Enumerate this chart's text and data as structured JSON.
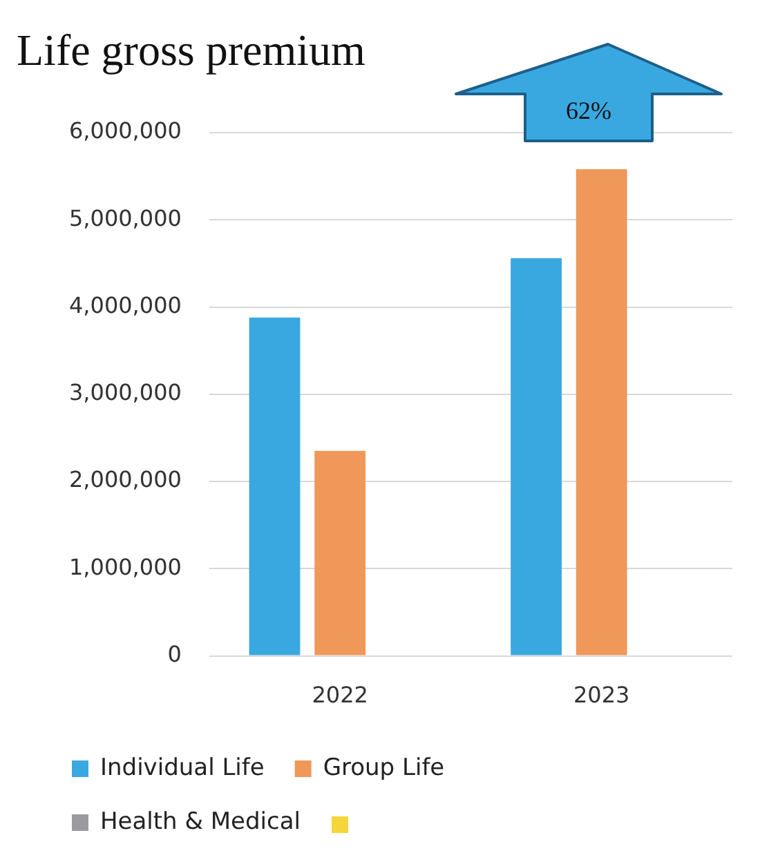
{
  "chart_data": {
    "type": "bar",
    "title": "Life gross premium",
    "categories": [
      "2022",
      "2023"
    ],
    "series": [
      {
        "name": "Individual Life",
        "color": "#3aa8e0",
        "values": [
          3880000,
          4560000
        ]
      },
      {
        "name": "Group Life",
        "color": "#f0975a",
        "values": [
          2350000,
          5580000
        ]
      },
      {
        "name": "Health & Medical",
        "color": "#9a9aa0",
        "values": [
          null,
          null
        ]
      }
    ],
    "ylim": [
      0,
      6000000
    ],
    "yticks": [
      {
        "value": 0,
        "label": "0"
      },
      {
        "value": 1000000,
        "label": "1,000,000"
      },
      {
        "value": 2000000,
        "label": "2,000,000"
      },
      {
        "value": 3000000,
        "label": "3,000,000"
      },
      {
        "value": 4000000,
        "label": "4,000,000"
      },
      {
        "value": 5000000,
        "label": "5,000,000"
      },
      {
        "value": 6000000,
        "label": "6,000,000"
      }
    ],
    "grid": "y",
    "legend": "bottom",
    "annotations": [
      "62%"
    ]
  }
}
